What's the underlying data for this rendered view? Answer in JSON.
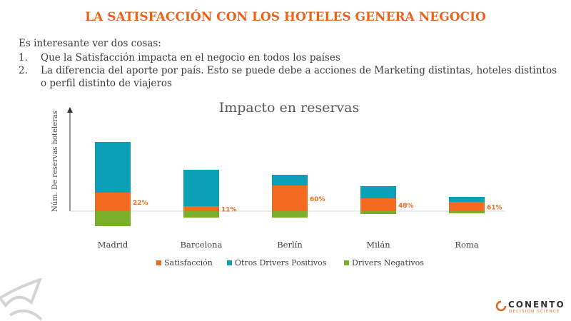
{
  "page_title": "LA SATISFACCIÓN CON LOS HOTELES GENERA NEGOCIO",
  "intro": "Es interesante ver dos cosas:",
  "points": [
    {
      "num": "1.",
      "text": "Que la Satisfacción impacta en el negocio en todos los países"
    },
    {
      "num": "2.",
      "text": "La diferencia del aporte por país. Esto se puede debe a acciones de Marketing distintas, hoteles distintos o perfil distinto de viajeros"
    }
  ],
  "brand": {
    "name": "CONENTO",
    "tagline": "DECISION SCIENCE"
  },
  "colors": {
    "satisfaccion": "#F26B21",
    "otros": "#0BA0B8",
    "negativos": "#7BAF2A",
    "title": "#E8641E"
  },
  "chart_data": {
    "type": "bar",
    "stacked": true,
    "title": "Impacto en reservas",
    "ylabel": "Núm. De reservas hoteleras",
    "xlabel": "",
    "categories": [
      "Madrid",
      "Barcelona",
      "Berlín",
      "Milán",
      "Roma"
    ],
    "series": [
      {
        "name": "Satisfacción",
        "color": "#F26B21",
        "values": [
          26,
          7,
          36,
          18,
          13
        ]
      },
      {
        "name": "Otros Drivers Positivos",
        "color": "#0BA0B8",
        "values": [
          71,
          51,
          15,
          17,
          7
        ]
      },
      {
        "name": "Drivers Negativos",
        "color": "#7BAF2A",
        "values": [
          -21,
          -9,
          -9,
          -4,
          -3
        ]
      }
    ],
    "data_labels": [
      "22%",
      "11%",
      "60%",
      "48%",
      "61%"
    ],
    "ylim": [
      -25,
      100
    ],
    "grid": false,
    "legend": "bottom"
  }
}
